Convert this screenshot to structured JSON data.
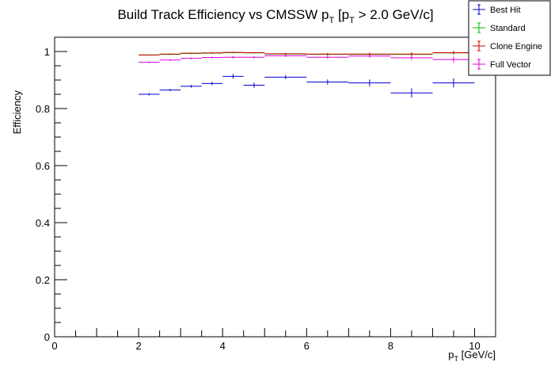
{
  "chart_data": {
    "type": "scatter",
    "title_main": "Build Track Efficiency vs CMSSW p",
    "title_sub1": "T",
    "title_mid": " [p",
    "title_sub2": "T",
    "title_end": " > 2.0 GeV/c]",
    "xlabel_main": "p",
    "xlabel_sub": "T",
    "xlabel_end": " [GeV/c]",
    "ylabel": "Efficiency",
    "xlim": [
      0,
      10.5
    ],
    "ylim": [
      0,
      1.05
    ],
    "xticks": [
      0,
      2,
      4,
      6,
      8,
      10
    ],
    "yticks": [
      0,
      0.2,
      0.4,
      0.6,
      0.8,
      1
    ],
    "xtick_labels": [
      "0",
      "2",
      "4",
      "6",
      "8",
      "10"
    ],
    "ytick_labels": [
      "0",
      "0.2",
      "0.4",
      "0.6",
      "0.8",
      "1"
    ],
    "grid": false,
    "legend_position": "top-right",
    "series": [
      {
        "name": "Best Hit",
        "color": "#0000cc",
        "points": [
          {
            "x": 2.25,
            "xerr": 0.25,
            "y": 0.85,
            "yerr": 0.004
          },
          {
            "x": 2.75,
            "xerr": 0.25,
            "y": 0.865,
            "yerr": 0.004
          },
          {
            "x": 3.25,
            "xerr": 0.25,
            "y": 0.878,
            "yerr": 0.005
          },
          {
            "x": 3.75,
            "xerr": 0.25,
            "y": 0.888,
            "yerr": 0.006
          },
          {
            "x": 4.25,
            "xerr": 0.25,
            "y": 0.913,
            "yerr": 0.008
          },
          {
            "x": 4.75,
            "xerr": 0.25,
            "y": 0.882,
            "yerr": 0.009
          },
          {
            "x": 5.5,
            "xerr": 0.5,
            "y": 0.91,
            "yerr": 0.007
          },
          {
            "x": 6.5,
            "xerr": 0.5,
            "y": 0.893,
            "yerr": 0.009
          },
          {
            "x": 7.5,
            "xerr": 0.5,
            "y": 0.89,
            "yerr": 0.012
          },
          {
            "x": 8.5,
            "xerr": 0.5,
            "y": 0.855,
            "yerr": 0.016
          },
          {
            "x": 9.5,
            "xerr": 0.5,
            "y": 0.89,
            "yerr": 0.016
          }
        ]
      },
      {
        "name": "Standard",
        "color": "#00bb00",
        "points": [
          {
            "x": 2.25,
            "xerr": 0.25,
            "y": 0.988,
            "yerr": 0.002
          },
          {
            "x": 2.75,
            "xerr": 0.25,
            "y": 0.99,
            "yerr": 0.002
          },
          {
            "x": 3.25,
            "xerr": 0.25,
            "y": 0.993,
            "yerr": 0.002
          },
          {
            "x": 3.75,
            "xerr": 0.25,
            "y": 0.994,
            "yerr": 0.002
          },
          {
            "x": 4.25,
            "xerr": 0.25,
            "y": 0.996,
            "yerr": 0.002
          },
          {
            "x": 4.75,
            "xerr": 0.25,
            "y": 0.995,
            "yerr": 0.002
          },
          {
            "x": 5.5,
            "xerr": 0.5,
            "y": 0.991,
            "yerr": 0.003
          },
          {
            "x": 6.5,
            "xerr": 0.5,
            "y": 0.99,
            "yerr": 0.004
          },
          {
            "x": 7.5,
            "xerr": 0.5,
            "y": 0.99,
            "yerr": 0.005
          },
          {
            "x": 8.5,
            "xerr": 0.5,
            "y": 0.99,
            "yerr": 0.006
          },
          {
            "x": 9.5,
            "xerr": 0.5,
            "y": 0.995,
            "yerr": 0.006
          }
        ]
      },
      {
        "name": "Clone Engine",
        "color": "#cc0000",
        "points": [
          {
            "x": 2.25,
            "xerr": 0.25,
            "y": 0.988,
            "yerr": 0.002
          },
          {
            "x": 2.75,
            "xerr": 0.25,
            "y": 0.991,
            "yerr": 0.002
          },
          {
            "x": 3.25,
            "xerr": 0.25,
            "y": 0.994,
            "yerr": 0.002
          },
          {
            "x": 3.75,
            "xerr": 0.25,
            "y": 0.995,
            "yerr": 0.002
          },
          {
            "x": 4.25,
            "xerr": 0.25,
            "y": 0.997,
            "yerr": 0.002
          },
          {
            "x": 4.75,
            "xerr": 0.25,
            "y": 0.996,
            "yerr": 0.002
          },
          {
            "x": 5.5,
            "xerr": 0.5,
            "y": 0.992,
            "yerr": 0.003
          },
          {
            "x": 6.5,
            "xerr": 0.5,
            "y": 0.991,
            "yerr": 0.004
          },
          {
            "x": 7.5,
            "xerr": 0.5,
            "y": 0.991,
            "yerr": 0.005
          },
          {
            "x": 8.5,
            "xerr": 0.5,
            "y": 0.991,
            "yerr": 0.006
          },
          {
            "x": 9.5,
            "xerr": 0.5,
            "y": 0.996,
            "yerr": 0.006
          }
        ]
      },
      {
        "name": "Full Vector",
        "color": "#dd00dd",
        "points": [
          {
            "x": 2.25,
            "xerr": 0.25,
            "y": 0.962,
            "yerr": 0.003
          },
          {
            "x": 2.75,
            "xerr": 0.25,
            "y": 0.97,
            "yerr": 0.003
          },
          {
            "x": 3.25,
            "xerr": 0.25,
            "y": 0.976,
            "yerr": 0.003
          },
          {
            "x": 3.75,
            "xerr": 0.25,
            "y": 0.979,
            "yerr": 0.003
          },
          {
            "x": 4.25,
            "xerr": 0.25,
            "y": 0.98,
            "yerr": 0.004
          },
          {
            "x": 4.75,
            "xerr": 0.25,
            "y": 0.98,
            "yerr": 0.004
          },
          {
            "x": 5.5,
            "xerr": 0.5,
            "y": 0.985,
            "yerr": 0.004
          },
          {
            "x": 6.5,
            "xerr": 0.5,
            "y": 0.98,
            "yerr": 0.005
          },
          {
            "x": 7.5,
            "xerr": 0.5,
            "y": 0.984,
            "yerr": 0.006
          },
          {
            "x": 8.5,
            "xerr": 0.5,
            "y": 0.978,
            "yerr": 0.008
          },
          {
            "x": 9.5,
            "xerr": 0.5,
            "y": 0.972,
            "yerr": 0.01
          }
        ]
      }
    ]
  }
}
